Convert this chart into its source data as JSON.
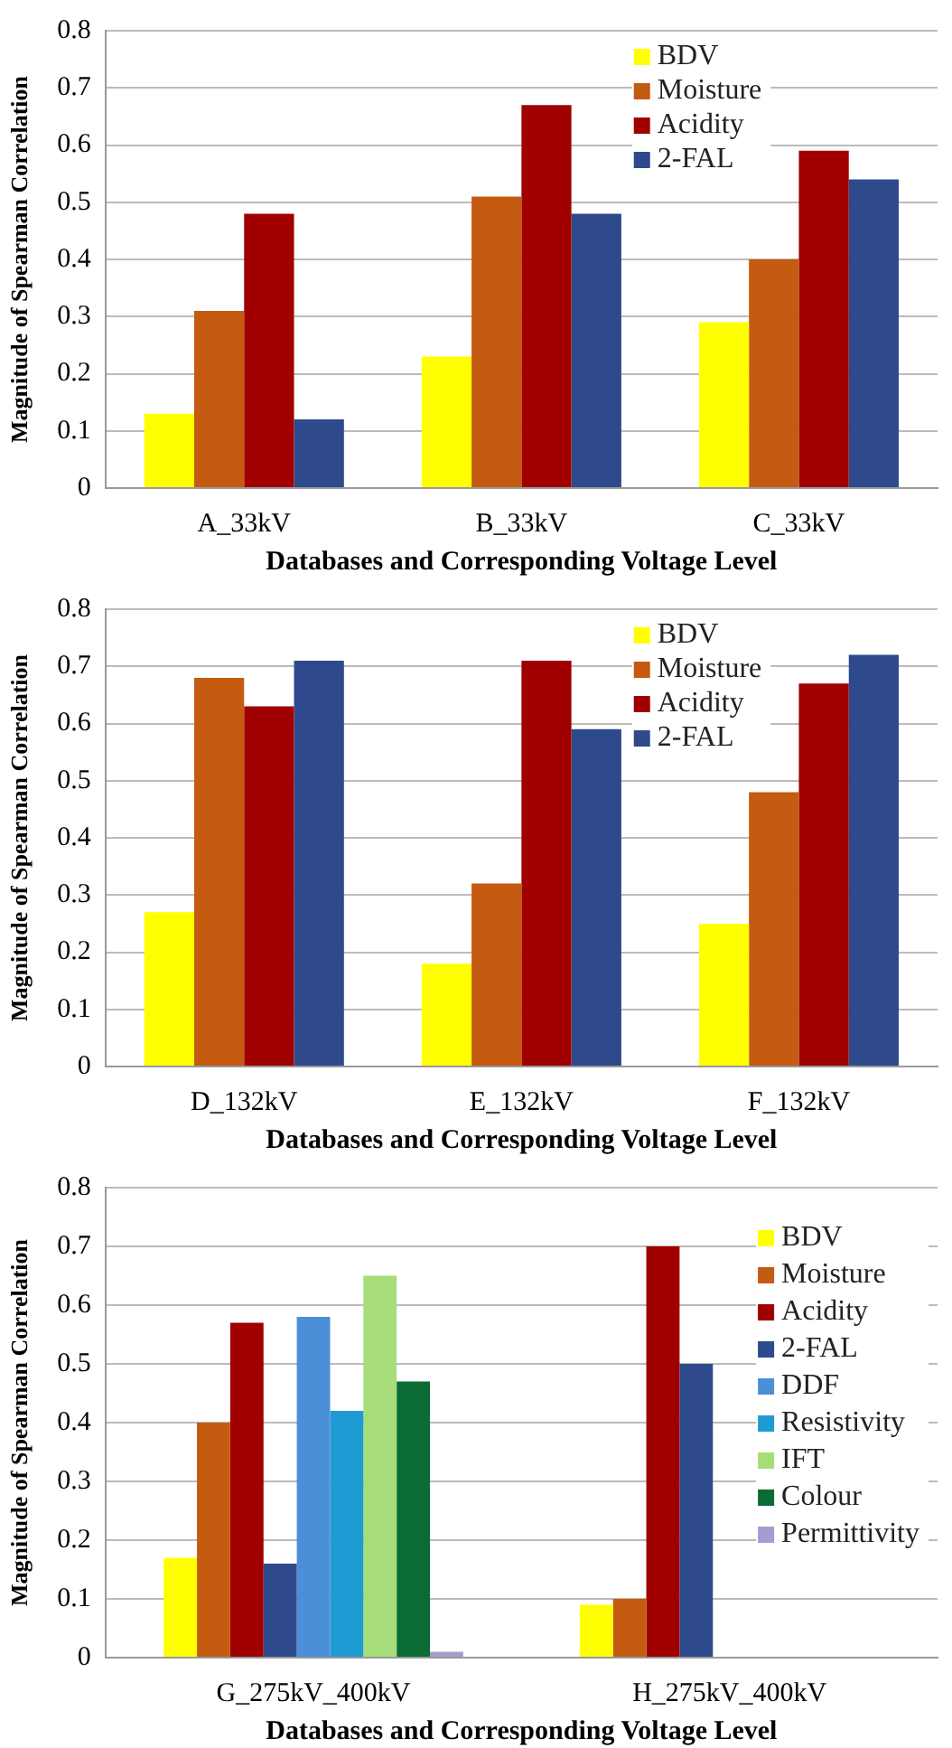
{
  "chart_data": [
    {
      "type": "bar",
      "xlabel": "Databases and Corresponding Voltage Level",
      "ylabel": "Magnitude of Spearman Correlation",
      "categories": [
        "A_33kV",
        "B_33kV",
        "C_33kV"
      ],
      "ylim": [
        0,
        0.8
      ],
      "yticks": [
        0,
        0.1,
        0.2,
        0.3,
        0.4,
        0.5,
        0.6,
        0.7,
        0.8
      ],
      "grid": "y",
      "legend": "top right",
      "series": [
        {
          "name": "BDV",
          "color": "#ffff00",
          "values": [
            0.13,
            0.23,
            0.29
          ]
        },
        {
          "name": "Moisture",
          "color": "#c55a11",
          "values": [
            0.31,
            0.51,
            0.4
          ]
        },
        {
          "name": "Acidity",
          "color": "#a00000",
          "values": [
            0.48,
            0.67,
            0.59
          ]
        },
        {
          "name": "2-FAL",
          "color": "#2e4a8c",
          "values": [
            0.12,
            0.48,
            0.54
          ]
        }
      ]
    },
    {
      "type": "bar",
      "xlabel": "Databases and Corresponding Voltage Level",
      "ylabel": "Magnitude of Spearman Correlation",
      "categories": [
        "D_132kV",
        "E_132kV",
        "F_132kV"
      ],
      "ylim": [
        0,
        0.8
      ],
      "yticks": [
        0,
        0.1,
        0.2,
        0.3,
        0.4,
        0.5,
        0.6,
        0.7,
        0.8
      ],
      "grid": "y",
      "legend": "top right",
      "series": [
        {
          "name": "BDV",
          "color": "#ffff00",
          "values": [
            0.27,
            0.18,
            0.25
          ]
        },
        {
          "name": "Moisture",
          "color": "#c55a11",
          "values": [
            0.68,
            0.32,
            0.48
          ]
        },
        {
          "name": "Acidity",
          "color": "#a00000",
          "values": [
            0.63,
            0.71,
            0.67
          ]
        },
        {
          "name": "2-FAL",
          "color": "#2e4a8c",
          "values": [
            0.71,
            0.59,
            0.72
          ]
        }
      ]
    },
    {
      "type": "bar",
      "xlabel": "Databases and Corresponding Voltage Level",
      "ylabel": "Magnitude of Spearman Correlation",
      "categories": [
        "G_275kV_400kV",
        "H_275kV_400kV"
      ],
      "ylim": [
        0,
        0.8
      ],
      "yticks": [
        0,
        0.1,
        0.2,
        0.3,
        0.4,
        0.5,
        0.6,
        0.7,
        0.8
      ],
      "grid": "y",
      "legend": "right",
      "series": [
        {
          "name": "BDV",
          "color": "#ffff00",
          "values": [
            0.17,
            0.09
          ]
        },
        {
          "name": "Moisture",
          "color": "#c55a11",
          "values": [
            0.4,
            0.1
          ]
        },
        {
          "name": "Acidity",
          "color": "#a00000",
          "values": [
            0.57,
            0.7
          ]
        },
        {
          "name": "2-FAL",
          "color": "#2e4a8c",
          "values": [
            0.16,
            0.5
          ]
        },
        {
          "name": "DDF",
          "color": "#4a8fd8",
          "values": [
            0.58,
            null
          ]
        },
        {
          "name": "Resistivity",
          "color": "#1f9bd4",
          "values": [
            0.42,
            null
          ]
        },
        {
          "name": "IFT",
          "color": "#a6dd78",
          "values": [
            0.65,
            null
          ]
        },
        {
          "name": "Colour",
          "color": "#0b6b35",
          "values": [
            0.47,
            null
          ]
        },
        {
          "name": "Permittivity",
          "color": "#a99bd0",
          "values": [
            0.01,
            null
          ]
        }
      ]
    }
  ]
}
